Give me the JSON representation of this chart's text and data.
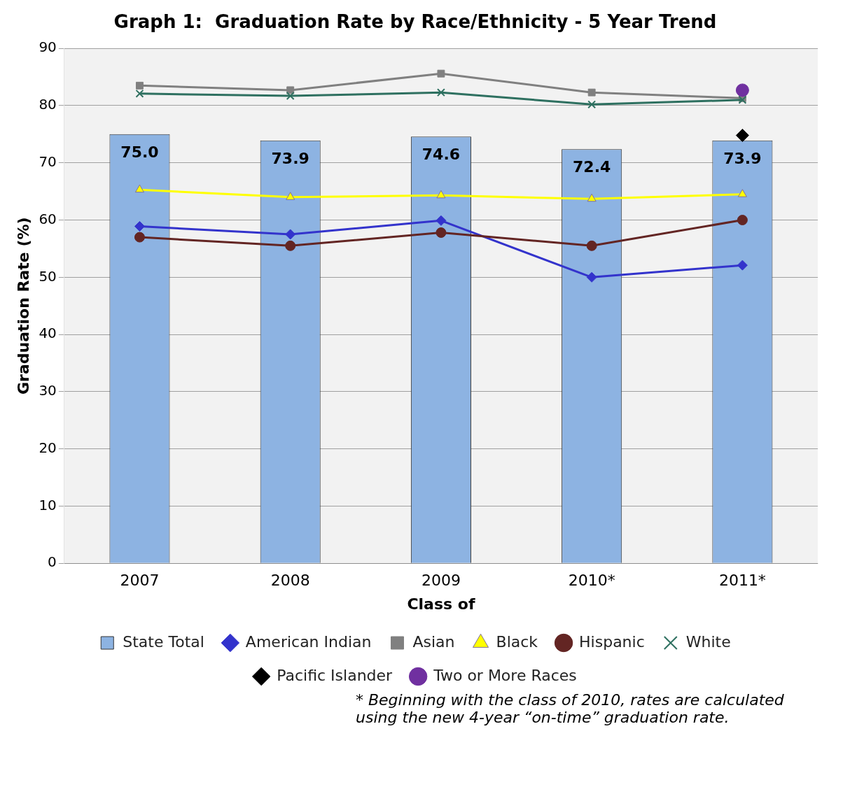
{
  "chart_data": {
    "type": "bar",
    "title": "Graph 1:  Graduation Rate by Race/Ethnicity - 5 Year Trend",
    "xlabel": "Class of",
    "ylabel": "Graduation Rate (%)",
    "categories": [
      "2007",
      "2008",
      "2009",
      "2010*",
      "2011*"
    ],
    "series": [
      {
        "name": "State Total",
        "color": "#8db3e2",
        "values": [
          75.0,
          73.9,
          74.6,
          72.4,
          73.9
        ],
        "value_labels": [
          "75.0",
          "73.9",
          "74.6",
          "72.4",
          "73.9"
        ]
      },
      {
        "name": "American Indian",
        "type": "line",
        "color": "#3333cc",
        "marker": "diamond",
        "values": [
          58.9,
          57.5,
          59.9,
          50.0,
          52.1
        ]
      },
      {
        "name": "Asian",
        "type": "line",
        "color": "#808080",
        "marker": "square",
        "values": [
          83.5,
          82.7,
          85.6,
          82.3,
          81.3
        ]
      },
      {
        "name": "Black",
        "type": "line",
        "color": "#ffff00",
        "marker": "triangle",
        "values": [
          65.3,
          64.0,
          64.3,
          63.7,
          64.5
        ]
      },
      {
        "name": "Hispanic",
        "type": "line",
        "color": "#632523",
        "marker": "circle",
        "values": [
          57.0,
          55.5,
          57.8,
          55.5,
          60.0
        ]
      },
      {
        "name": "White",
        "type": "line",
        "color": "#2e7060",
        "marker": "cross",
        "values": [
          82.1,
          81.7,
          82.3,
          80.2,
          81.0
        ]
      },
      {
        "name": "Pacific Islander",
        "type": "scatter",
        "color": "#000000",
        "marker": "diamond",
        "values": [
          null,
          null,
          null,
          null,
          74.8
        ]
      },
      {
        "name": "Two or More Races",
        "type": "scatter",
        "color": "#7030a0",
        "marker": "circle",
        "values": [
          null,
          null,
          null,
          null,
          82.7
        ]
      }
    ],
    "ylim": [
      0,
      90
    ],
    "yticks": [
      0,
      10,
      20,
      30,
      40,
      50,
      60,
      70,
      80,
      90
    ],
    "grid": "y",
    "legend": "bottom",
    "annotations": [
      "*  Beginning with the class of 2010, rates are calculated using the new 4-year “on-time” graduation rate."
    ]
  }
}
